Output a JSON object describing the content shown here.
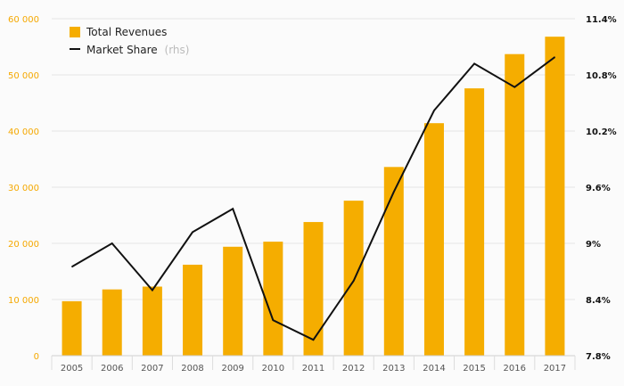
{
  "chart_data": {
    "type": "bar+line",
    "categories": [
      "2005",
      "2006",
      "2007",
      "2008",
      "2009",
      "2010",
      "2011",
      "2012",
      "2013",
      "2014",
      "2015",
      "2016",
      "2017"
    ],
    "series": [
      {
        "name": "Total Revenues",
        "type": "bar",
        "axis": "left",
        "color": "#f5ad00",
        "values": [
          9700,
          11800,
          12300,
          16200,
          19400,
          20300,
          23800,
          27600,
          33600,
          41400,
          47600,
          53700,
          56800
        ]
      },
      {
        "name": "Market Share",
        "type": "line",
        "axis": "right",
        "color": "#111111",
        "values": [
          8.75,
          9.0,
          8.5,
          9.12,
          9.37,
          8.18,
          7.97,
          8.6,
          9.55,
          10.42,
          10.92,
          10.67,
          10.99
        ]
      }
    ],
    "legend": {
      "bar_label": "Total Revenues",
      "line_label": "Market Share",
      "line_suffix": "(rhs)",
      "position": "top-left"
    },
    "left_axis": {
      "ylim": [
        0,
        60000
      ],
      "ticks": [
        0,
        10000,
        20000,
        30000,
        40000,
        50000,
        60000
      ],
      "tick_labels": [
        "0",
        "10 000",
        "20 000",
        "30 000",
        "40 000",
        "50 000",
        "60 000"
      ],
      "color": "#f5a800"
    },
    "right_axis": {
      "ylim": [
        7.8,
        11.4
      ],
      "ticks": [
        7.8,
        8.4,
        9.0,
        9.6,
        10.2,
        10.8,
        11.4
      ],
      "tick_labels": [
        "7.8%",
        "8.4%",
        "9%",
        "9.6%",
        "10.2%",
        "10.8%",
        "11.4%"
      ]
    },
    "grid": true
  }
}
